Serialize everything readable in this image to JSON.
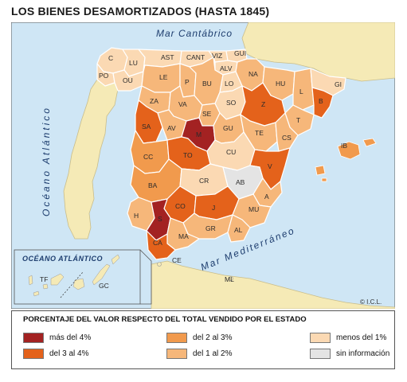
{
  "title": "LOS BIENES DESAMORTIZADOS (HASTA 1845)",
  "seas": {
    "cantabrico": "Mar Cantábrico",
    "atlantico": "Océano  Atlántico",
    "mediterraneo": "Mar  Mediterráneo",
    "atlantico_inset": "OCÉANO ATLÁNTICO"
  },
  "copyright": "© I.C.L.",
  "colors": {
    "sea": "#cfe6f5",
    "land_other": "#f5eab6",
    "border": "#ffffff",
    "mas_4": "#a32222",
    "de_3_a_4": "#e4621b",
    "de_2_a_3": "#f19a4d",
    "de_1_a_2": "#f6b77a",
    "menos_1": "#fbd9b3",
    "sin_info": "#e4e4e4"
  },
  "legend": {
    "title": "PORCENTAJE DEL VALOR RESPECTO DEL TOTAL VENDIDO POR EL ESTADO",
    "items": [
      {
        "key": "mas_4",
        "label": "más del 4%"
      },
      {
        "key": "de_2_a_3",
        "label": "del 2 al 3%"
      },
      {
        "key": "menos_1",
        "label": "menos del 1%"
      },
      {
        "key": "de_3_a_4",
        "label": "del 3 al 4%"
      },
      {
        "key": "de_1_a_2",
        "label": "del 1 al 2%"
      },
      {
        "key": "sin_info",
        "label": "sin información"
      }
    ]
  },
  "provinces": [
    {
      "code": "C",
      "cat": "menos_1"
    },
    {
      "code": "LU",
      "cat": "menos_1"
    },
    {
      "code": "PO",
      "cat": "menos_1"
    },
    {
      "code": "OU",
      "cat": "menos_1"
    },
    {
      "code": "AST",
      "cat": "menos_1"
    },
    {
      "code": "CANT",
      "cat": "menos_1"
    },
    {
      "code": "VIZ",
      "cat": "menos_1"
    },
    {
      "code": "GUI",
      "cat": "menos_1"
    },
    {
      "code": "ALV",
      "cat": "menos_1"
    },
    {
      "code": "NA",
      "cat": "de_1_a_2"
    },
    {
      "code": "LE",
      "cat": "de_1_a_2"
    },
    {
      "code": "P",
      "cat": "de_1_a_2"
    },
    {
      "code": "BU",
      "cat": "de_1_a_2"
    },
    {
      "code": "LO",
      "cat": "menos_1"
    },
    {
      "code": "HU",
      "cat": "de_1_a_2"
    },
    {
      "code": "L",
      "cat": "de_1_a_2"
    },
    {
      "code": "GI",
      "cat": "menos_1"
    },
    {
      "code": "B",
      "cat": "de_3_a_4"
    },
    {
      "code": "ZA",
      "cat": "de_1_a_2"
    },
    {
      "code": "VA",
      "cat": "de_1_a_2"
    },
    {
      "code": "SE",
      "cat": "de_1_a_2"
    },
    {
      "code": "SO",
      "cat": "menos_1"
    },
    {
      "code": "Z",
      "cat": "de_3_a_4"
    },
    {
      "code": "T",
      "cat": "de_1_a_2"
    },
    {
      "code": "SA",
      "cat": "de_3_a_4"
    },
    {
      "code": "AV",
      "cat": "de_1_a_2"
    },
    {
      "code": "M",
      "cat": "mas_4"
    },
    {
      "code": "GU",
      "cat": "de_1_a_2"
    },
    {
      "code": "TE",
      "cat": "de_1_a_2"
    },
    {
      "code": "CS",
      "cat": "de_1_a_2"
    },
    {
      "code": "CC",
      "cat": "de_2_a_3"
    },
    {
      "code": "TO",
      "cat": "de_3_a_4"
    },
    {
      "code": "CU",
      "cat": "menos_1"
    },
    {
      "code": "V",
      "cat": "de_3_a_4"
    },
    {
      "code": "BA",
      "cat": "de_2_a_3"
    },
    {
      "code": "CR",
      "cat": "menos_1"
    },
    {
      "code": "AB",
      "cat": "sin_info"
    },
    {
      "code": "A",
      "cat": "de_1_a_2"
    },
    {
      "code": "H",
      "cat": "de_1_a_2"
    },
    {
      "code": "CO",
      "cat": "de_3_a_4"
    },
    {
      "code": "J",
      "cat": "de_3_a_4"
    },
    {
      "code": "MU",
      "cat": "de_1_a_2"
    },
    {
      "code": "S",
      "cat": "mas_4"
    },
    {
      "code": "GR",
      "cat": "de_1_a_2"
    },
    {
      "code": "AL",
      "cat": "de_1_a_2"
    },
    {
      "code": "MA",
      "cat": "de_1_a_2"
    },
    {
      "code": "CA",
      "cat": "de_3_a_4"
    },
    {
      "code": "IB",
      "cat": "de_2_a_3"
    },
    {
      "code": "CE",
      "cat": "none"
    },
    {
      "code": "ML",
      "cat": "none"
    },
    {
      "code": "TF",
      "cat": "none"
    },
    {
      "code": "GC",
      "cat": "none"
    }
  ]
}
